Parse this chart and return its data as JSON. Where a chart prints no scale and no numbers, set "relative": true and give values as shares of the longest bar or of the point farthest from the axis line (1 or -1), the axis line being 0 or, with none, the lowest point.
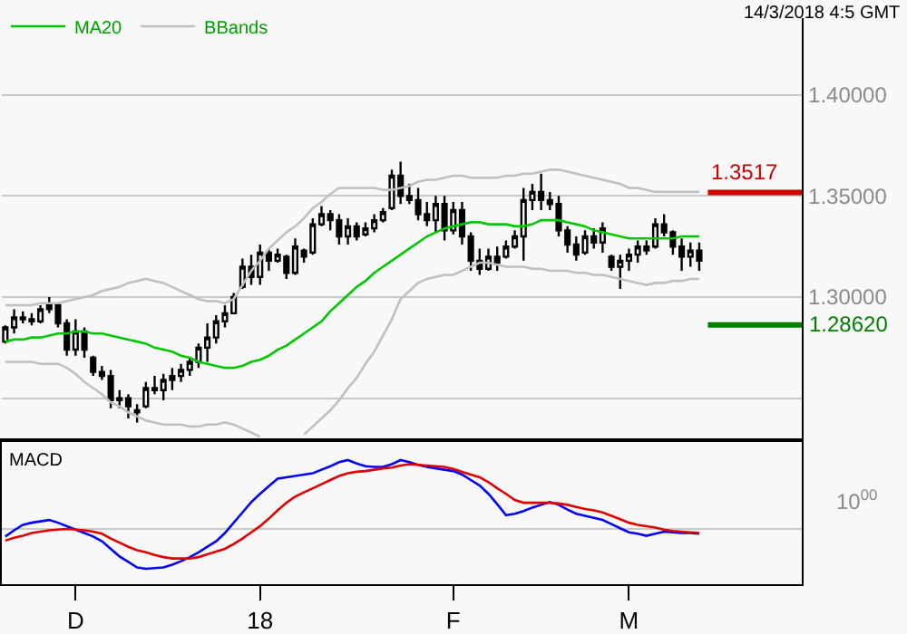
{
  "chart_data": [
    {
      "type": "candlestick",
      "categories": [
        null,
        null,
        null,
        null,
        null,
        null,
        null,
        null,
        null,
        null,
        null,
        null,
        null,
        null,
        null,
        null,
        null,
        null,
        null,
        null,
        null,
        null,
        null,
        null,
        null,
        null,
        null,
        null,
        null,
        null,
        null,
        null,
        null,
        null,
        null,
        null,
        null,
        null,
        null,
        null,
        null,
        null,
        null,
        null,
        null,
        null,
        null,
        null,
        null,
        null,
        null,
        null,
        null,
        null,
        null,
        null,
        null,
        null,
        null,
        null,
        null,
        null,
        null,
        null,
        null,
        null,
        null,
        null,
        null,
        null,
        null,
        null,
        null,
        null,
        null,
        null,
        null,
        null,
        null,
        null
      ],
      "ohlc": [
        [
          1.278,
          1.286,
          1.277,
          1.285
        ],
        [
          1.285,
          1.294,
          1.282,
          1.29
        ],
        [
          1.29,
          1.293,
          1.287,
          1.289
        ],
        [
          1.289,
          1.292,
          1.286,
          1.288
        ],
        [
          1.288,
          1.296,
          1.287,
          1.294
        ],
        [
          1.294,
          1.3,
          1.292,
          1.296
        ],
        [
          1.296,
          1.297,
          1.285,
          1.287
        ],
        [
          1.287,
          1.289,
          1.271,
          1.274
        ],
        [
          1.274,
          1.289,
          1.271,
          1.283
        ],
        [
          1.283,
          1.285,
          1.27,
          1.274
        ],
        [
          1.27,
          1.271,
          1.261,
          1.263
        ],
        [
          1.263,
          1.266,
          1.259,
          1.261
        ],
        [
          1.261,
          1.264,
          1.245,
          1.249
        ],
        [
          1.249,
          1.254,
          1.245,
          1.25
        ],
        [
          1.25,
          1.252,
          1.24,
          1.246
        ],
        [
          1.244,
          1.247,
          1.238,
          1.243
        ],
        [
          1.246,
          1.258,
          1.245,
          1.255
        ],
        [
          1.255,
          1.261,
          1.252,
          1.254
        ],
        [
          1.254,
          1.262,
          1.249,
          1.259
        ],
        [
          1.259,
          1.265,
          1.254,
          1.261
        ],
        [
          1.261,
          1.267,
          1.258,
          1.264
        ],
        [
          1.264,
          1.27,
          1.261,
          1.268
        ],
        [
          1.268,
          1.277,
          1.265,
          1.275
        ],
        [
          1.275,
          1.287,
          1.268,
          1.28
        ],
        [
          1.28,
          1.291,
          1.277,
          1.288
        ],
        [
          1.288,
          1.296,
          1.285,
          1.292
        ],
        [
          1.292,
          1.302,
          1.292,
          1.3
        ],
        [
          1.305,
          1.319,
          1.304,
          1.315
        ],
        [
          1.315,
          1.321,
          1.306,
          1.31
        ],
        [
          1.31,
          1.326,
          1.306,
          1.322
        ],
        [
          1.322,
          1.324,
          1.313,
          1.318
        ],
        [
          1.318,
          1.324,
          1.317,
          1.321
        ],
        [
          1.32,
          1.321,
          1.309,
          1.312
        ],
        [
          1.312,
          1.329,
          1.311,
          1.325
        ],
        [
          1.323,
          1.324,
          1.317,
          1.32
        ],
        [
          1.322,
          1.339,
          1.321,
          1.336
        ],
        [
          1.336,
          1.345,
          1.335,
          1.341
        ],
        [
          1.341,
          1.343,
          1.333,
          1.338
        ],
        [
          1.338,
          1.341,
          1.326,
          1.33
        ],
        [
          1.33,
          1.339,
          1.326,
          1.335
        ],
        [
          1.335,
          1.337,
          1.328,
          1.33
        ],
        [
          1.331,
          1.337,
          1.33,
          1.334
        ],
        [
          1.334,
          1.341,
          1.332,
          1.338
        ],
        [
          1.338,
          1.344,
          1.337,
          1.342
        ],
        [
          1.344,
          1.363,
          1.343,
          1.36
        ],
        [
          1.36,
          1.367,
          1.346,
          1.35
        ],
        [
          1.35,
          1.356,
          1.346,
          1.348
        ],
        [
          1.348,
          1.354,
          1.338,
          1.341
        ],
        [
          1.341,
          1.347,
          1.335,
          1.338
        ],
        [
          1.338,
          1.35,
          1.332,
          1.346
        ],
        [
          1.346,
          1.35,
          1.328,
          1.333
        ],
        [
          1.333,
          1.347,
          1.331,
          1.343
        ],
        [
          1.343,
          1.347,
          1.326,
          1.33
        ],
        [
          1.33,
          1.332,
          1.313,
          1.318
        ],
        [
          1.318,
          1.324,
          1.311,
          1.314
        ],
        [
          1.314,
          1.324,
          1.313,
          1.32
        ],
        [
          1.32,
          1.325,
          1.313,
          1.317
        ],
        [
          1.32,
          1.328,
          1.319,
          1.325
        ],
        [
          1.325,
          1.333,
          1.324,
          1.33
        ],
        [
          1.33,
          1.354,
          1.318,
          1.348
        ],
        [
          1.348,
          1.356,
          1.343,
          1.352
        ],
        [
          1.352,
          1.361,
          1.343,
          1.348
        ],
        [
          1.348,
          1.352,
          1.343,
          1.346
        ],
        [
          1.346,
          1.35,
          1.33,
          1.333
        ],
        [
          1.333,
          1.335,
          1.322,
          1.326
        ],
        [
          1.326,
          1.33,
          1.318,
          1.321
        ],
        [
          1.322,
          1.333,
          1.321,
          1.33
        ],
        [
          1.33,
          1.334,
          1.324,
          1.327
        ],
        [
          1.327,
          1.337,
          1.322,
          1.334
        ],
        [
          1.32,
          1.321,
          1.313,
          1.315
        ],
        [
          1.315,
          1.321,
          1.304,
          1.318
        ],
        [
          1.318,
          1.324,
          1.313,
          1.321
        ],
        [
          1.321,
          1.328,
          1.317,
          1.325
        ],
        [
          1.325,
          1.328,
          1.321,
          1.323
        ],
        [
          1.325,
          1.339,
          1.324,
          1.336
        ],
        [
          1.336,
          1.341,
          1.33,
          1.332
        ],
        [
          1.332,
          1.333,
          1.321,
          1.325
        ],
        [
          1.325,
          1.329,
          1.313,
          1.32
        ],
        [
          1.32,
          1.327,
          1.315,
          1.323
        ],
        [
          1.323,
          1.327,
          1.313,
          1.318
        ]
      ],
      "color": "#000000",
      "series": [
        {
          "name": "MA20",
          "type": "line",
          "color": "#00c800",
          "values": [
            1.278,
            1.279,
            1.279,
            1.28,
            1.28,
            1.281,
            1.282,
            1.282,
            1.283,
            1.283,
            1.282,
            1.282,
            1.281,
            1.28,
            1.279,
            1.278,
            1.277,
            1.275,
            1.274,
            1.273,
            1.271,
            1.27,
            1.268,
            1.267,
            1.266,
            1.265,
            1.265,
            1.266,
            1.268,
            1.269,
            1.271,
            1.274,
            1.276,
            1.279,
            1.282,
            1.285,
            1.288,
            1.293,
            1.297,
            1.301,
            1.305,
            1.308,
            1.312,
            1.315,
            1.318,
            1.321,
            1.324,
            1.327,
            1.33,
            1.332,
            1.334,
            1.335,
            1.336,
            1.337,
            1.337,
            1.336,
            1.336,
            1.336,
            1.335,
            1.335,
            1.336,
            1.338,
            1.338,
            1.338,
            1.337,
            1.336,
            1.335,
            1.333,
            1.332,
            1.331,
            1.33,
            1.329,
            1.329,
            1.329,
            1.329,
            1.329,
            1.329,
            1.33,
            1.33,
            1.33
          ]
        },
        {
          "name": "BBands",
          "type": "line",
          "color": "#c0c0c0",
          "values": [
            1.296,
            1.296,
            1.296,
            1.296,
            1.297,
            1.297,
            1.297,
            1.298,
            1.299,
            1.3,
            1.301,
            1.303,
            1.304,
            1.305,
            1.307,
            1.308,
            1.309,
            1.308,
            1.307,
            1.305,
            1.303,
            1.301,
            1.299,
            1.298,
            1.298,
            1.297,
            1.299,
            1.306,
            1.313,
            1.318,
            1.324,
            1.328,
            1.332,
            1.335,
            1.339,
            1.344,
            1.347,
            1.351,
            1.354,
            1.354,
            1.354,
            1.354,
            1.354,
            1.353,
            1.353,
            1.354,
            1.355,
            1.357,
            1.358,
            1.358,
            1.359,
            1.36,
            1.36,
            1.359,
            1.359,
            1.359,
            1.359,
            1.36,
            1.36,
            1.361,
            1.361,
            1.362,
            1.363,
            1.363,
            1.362,
            1.361,
            1.36,
            1.359,
            1.358,
            1.357,
            1.356,
            1.354,
            1.354,
            1.353,
            1.352,
            1.352,
            1.352,
            1.352,
            1.352,
            1.352
          ]
        },
        {
          "type": "line",
          "color": "#c0c0c0",
          "values": [
            1.268,
            1.268,
            1.268,
            1.268,
            1.267,
            1.267,
            1.267,
            1.265,
            1.262,
            1.258,
            1.255,
            1.252,
            1.248,
            1.246,
            1.243,
            1.241,
            1.239,
            1.238,
            1.237,
            1.237,
            1.237,
            1.236,
            1.236,
            1.237,
            1.237,
            1.238,
            1.237,
            1.235,
            1.233,
            1.231,
            null,
            null,
            null,
            null,
            1.232,
            1.236,
            1.24,
            1.244,
            1.249,
            1.255,
            1.26,
            1.267,
            1.273,
            1.281,
            1.289,
            1.299,
            1.303,
            1.307,
            1.309,
            1.31,
            1.311,
            1.311,
            1.313,
            1.315,
            1.317,
            1.317,
            1.316,
            1.315,
            1.315,
            1.315,
            1.314,
            1.314,
            1.313,
            1.313,
            1.313,
            1.312,
            1.312,
            1.311,
            1.311,
            1.31,
            1.309,
            1.308,
            1.307,
            1.306,
            1.307,
            1.307,
            1.308,
            1.308,
            1.309,
            1.309
          ]
        }
      ],
      "ylim": [
        1.23,
        1.438
      ],
      "yticks": [
        {
          "value": 1.4,
          "label": "1.40000"
        },
        {
          "value": 1.35,
          "label": "1.35000"
        },
        {
          "value": 1.3,
          "label": "1.30000"
        },
        {
          "value": 1.25,
          "label": null
        }
      ],
      "ref_lines": [
        {
          "axis": "y",
          "value": 1.3517,
          "label": "1.3517",
          "color": "#cc0000"
        },
        {
          "axis": "y",
          "value": 1.2862,
          "label": "1.28620",
          "color": "#008000"
        }
      ],
      "grid": "y",
      "legend": "top left",
      "tick_labels": "y",
      "annotations": [
        "14/3/2018 4:5 GMT"
      ]
    },
    {
      "type": "line",
      "title": "MACD",
      "relative": true,
      "categories": [
        null,
        null,
        null,
        null,
        null,
        null,
        null,
        null,
        "D",
        null,
        null,
        null,
        null,
        null,
        null,
        null,
        null,
        null,
        null,
        null,
        null,
        null,
        null,
        null,
        null,
        null,
        null,
        null,
        null,
        "18",
        null,
        null,
        null,
        null,
        null,
        null,
        null,
        null,
        null,
        null,
        null,
        null,
        null,
        null,
        null,
        null,
        null,
        null,
        null,
        null,
        null,
        "F",
        null,
        null,
        null,
        null,
        null,
        null,
        null,
        null,
        null,
        null,
        null,
        null,
        null,
        null,
        null,
        null,
        null,
        null,
        null,
        "M",
        null,
        null,
        null,
        null,
        null,
        null,
        null,
        null
      ],
      "series": [
        {
          "color": "#0000ff",
          "values": [
            -0.11,
            -0.02,
            0.06,
            0.09,
            0.11,
            0.13,
            0.09,
            0.04,
            -0.01,
            -0.06,
            -0.11,
            -0.18,
            -0.29,
            -0.4,
            -0.48,
            -0.56,
            -0.58,
            -0.57,
            -0.56,
            -0.52,
            -0.47,
            -0.41,
            -0.34,
            -0.26,
            -0.18,
            -0.06,
            0.09,
            0.24,
            0.39,
            0.51,
            0.62,
            0.73,
            0.75,
            0.77,
            0.79,
            0.81,
            0.86,
            0.91,
            0.97,
            1.0,
            0.95,
            0.91,
            0.9,
            0.9,
            0.94,
            1.0,
            0.97,
            0.93,
            0.9,
            0.88,
            0.86,
            0.84,
            0.79,
            0.71,
            0.63,
            0.51,
            0.36,
            0.2,
            0.22,
            0.26,
            0.31,
            0.35,
            0.39,
            0.35,
            0.28,
            0.22,
            0.19,
            0.16,
            0.13,
            0.07,
            0.01,
            -0.05,
            -0.07,
            -0.1,
            -0.07,
            -0.04,
            -0.05,
            -0.06,
            -0.06,
            -0.07
          ]
        },
        {
          "color": "#e00000",
          "values": [
            -0.17,
            -0.13,
            -0.1,
            -0.06,
            -0.04,
            -0.02,
            -0.01,
            0,
            -0.01,
            -0.02,
            -0.04,
            -0.07,
            -0.14,
            -0.2,
            -0.26,
            -0.31,
            -0.34,
            -0.38,
            -0.41,
            -0.43,
            -0.43,
            -0.43,
            -0.41,
            -0.37,
            -0.33,
            -0.29,
            -0.22,
            -0.14,
            -0.05,
            0.04,
            0.15,
            0.27,
            0.38,
            0.47,
            0.53,
            0.59,
            0.65,
            0.71,
            0.77,
            0.81,
            0.83,
            0.84,
            0.86,
            0.88,
            0.89,
            0.92,
            0.94,
            0.93,
            0.92,
            0.91,
            0.9,
            0.87,
            0.83,
            0.79,
            0.75,
            0.68,
            0.59,
            0.51,
            0.42,
            0.38,
            0.38,
            0.38,
            0.38,
            0.37,
            0.35,
            0.32,
            0.29,
            0.27,
            0.24,
            0.19,
            0.14,
            0.09,
            0.06,
            0.04,
            0.02,
            -0.01,
            -0.03,
            -0.04,
            -0.05,
            -0.06
          ]
        }
      ],
      "tick_labels": "x",
      "annotations": [
        "10$^{00}$"
      ]
    }
  ]
}
